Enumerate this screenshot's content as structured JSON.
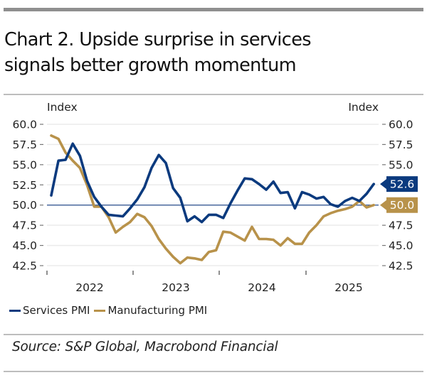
{
  "title_line1": "Chart 2. Upside surprise in services",
  "title_line2": "signals better growth momentum",
  "source": "Source: S&P Global, Macrobond Financial",
  "colors": {
    "services": "#0b3a7e",
    "manufacturing": "#b8924a",
    "reference_line": "#2a4f8f",
    "grid": "#ebebeb"
  },
  "chart_data": {
    "type": "line",
    "title": "Chart 2. Upside surprise in services signals better growth momentum",
    "xlabel": "",
    "ylabel_left": "Index",
    "ylabel_right": "Index",
    "ylim": [
      42.5,
      60.0
    ],
    "yticks": [
      "60.0",
      "57.5",
      "55.0",
      "52.5",
      "50.0",
      "47.5",
      "45.0",
      "42.5"
    ],
    "ytick_values": [
      60.0,
      57.5,
      55.0,
      52.5,
      50.0,
      47.5,
      45.0,
      42.5
    ],
    "xtick_labels": [
      "2022",
      "2023",
      "2024",
      "2025"
    ],
    "x_start": "2022-01",
    "x_end": "2025-10",
    "frequency": "monthly",
    "reference_line": 50.0,
    "grid": true,
    "legend_position": "bottom-left",
    "series": [
      {
        "name": "Services PMI",
        "color": "#0b3a7e",
        "last_value_label": "52.6",
        "values": [
          51.2,
          55.5,
          55.6,
          57.6,
          56.1,
          53.0,
          51.0,
          49.8,
          48.8,
          48.7,
          48.6,
          49.6,
          50.7,
          52.2,
          54.6,
          56.2,
          55.2,
          52.1,
          50.9,
          48.0,
          48.6,
          47.9,
          48.8,
          48.8,
          48.4,
          50.2,
          51.8,
          53.3,
          53.2,
          52.6,
          51.9,
          52.9,
          51.5,
          51.6,
          49.6,
          51.6,
          51.3,
          50.8,
          51.0,
          50.1,
          49.8,
          50.5,
          50.9,
          50.5,
          51.4,
          52.6
        ]
      },
      {
        "name": "Manufacturing PMI",
        "color": "#b8924a",
        "last_value_label": "50.0",
        "values": [
          58.6,
          58.2,
          56.5,
          55.5,
          54.6,
          52.5,
          49.8,
          49.8,
          48.5,
          46.6,
          47.3,
          47.9,
          48.9,
          48.5,
          47.4,
          45.8,
          44.6,
          43.6,
          42.8,
          43.5,
          43.4,
          43.2,
          44.2,
          44.4,
          46.7,
          46.6,
          46.1,
          45.6,
          47.3,
          45.8,
          45.8,
          45.7,
          45.0,
          45.9,
          45.2,
          45.2,
          46.6,
          47.5,
          48.6,
          49.0,
          49.3,
          49.5,
          49.8,
          50.5,
          49.7,
          50.0
        ]
      }
    ]
  }
}
